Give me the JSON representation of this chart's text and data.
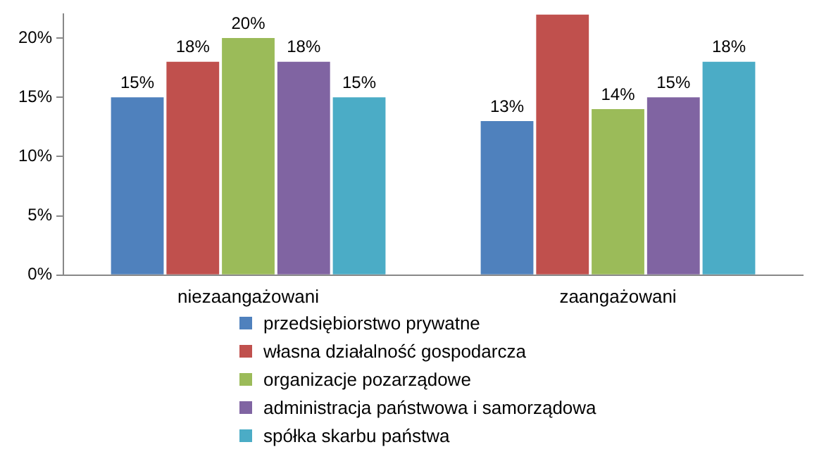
{
  "chart_data": {
    "type": "bar",
    "categories": [
      "niezaangażowani",
      "zaangażowani"
    ],
    "series": [
      {
        "name": "przedsiębiorstwo prywatne",
        "color": "#4f81bd",
        "values": [
          15,
          13
        ],
        "value_labels": [
          "15%",
          "13%"
        ]
      },
      {
        "name": "własna działalność gospodarcza",
        "color": "#c0504d",
        "values": [
          18,
          22
        ],
        "value_labels": [
          "18%",
          null
        ]
      },
      {
        "name": "organizacje pozarządowe",
        "color": "#9bbb59",
        "values": [
          20,
          14
        ],
        "value_labels": [
          "20%",
          "14%"
        ]
      },
      {
        "name": "administracja państwowa i samorządowa",
        "color": "#8064a2",
        "values": [
          18,
          15
        ],
        "value_labels": [
          "18%",
          "15%"
        ]
      },
      {
        "name": "spółka skarbu państwa",
        "color": "#4bacc6",
        "values": [
          15,
          18
        ],
        "value_labels": [
          "15%",
          "18%"
        ]
      }
    ],
    "ylim": [
      0,
      22
    ],
    "yticks": [
      {
        "value": 0,
        "label": "0%"
      },
      {
        "value": 5,
        "label": "5%"
      },
      {
        "value": 10,
        "label": "10%"
      },
      {
        "value": 15,
        "label": "15%"
      },
      {
        "value": 20,
        "label": "20%"
      }
    ],
    "grid": false,
    "legend": "bottom"
  }
}
